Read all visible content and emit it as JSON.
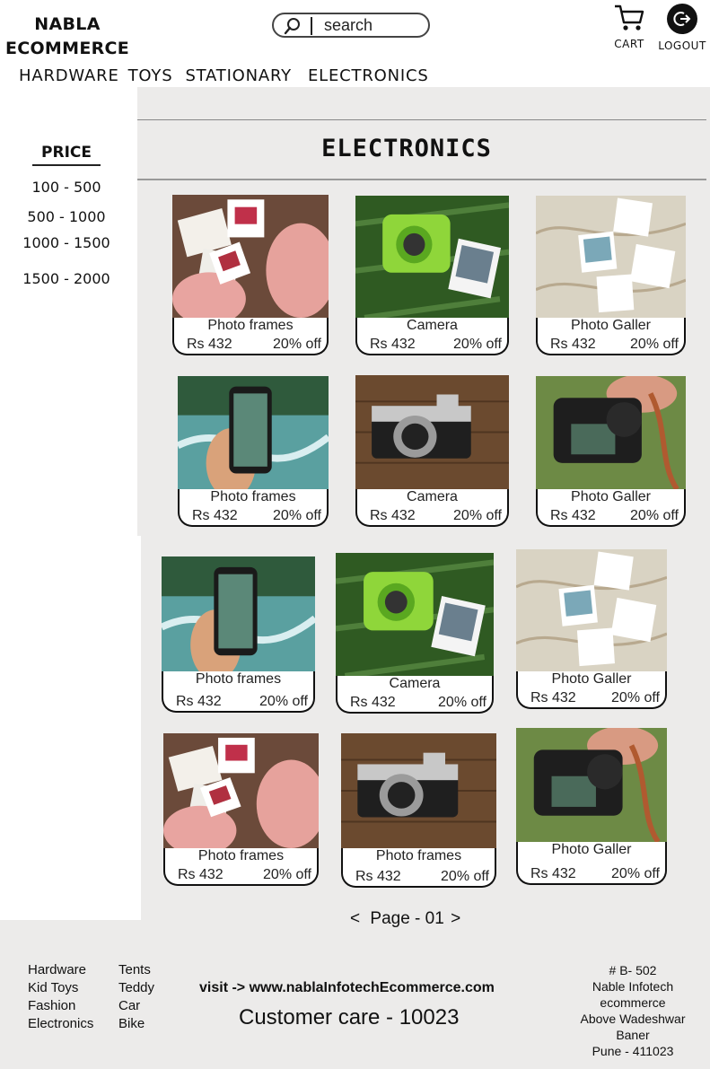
{
  "brand": {
    "line1": "NABLA",
    "line2": "ECOMMERCE"
  },
  "search": {
    "placeholder": "search"
  },
  "header": {
    "cart_label": "CART",
    "logout_label": "LOGOUT"
  },
  "nav": [
    "HARDWARE",
    "TOYS",
    "STATIONARY",
    "ELECTRONICS"
  ],
  "page_title": "ELECTRONICS",
  "filter": {
    "title": "PRICE",
    "options": [
      "100 - 500",
      "500 - 1000",
      "1000 - 1500",
      "1500 - 2000"
    ]
  },
  "products": [
    {
      "name": "Photo frames",
      "price": "Rs 432",
      "discount": "20% off",
      "image": "hands-holding-slides"
    },
    {
      "name": "Camera",
      "price": "Rs 432",
      "discount": "20% off",
      "image": "green-instant-camera"
    },
    {
      "name": "Photo Galler",
      "price": "Rs 432",
      "discount": "20% off",
      "image": "photos-on-map"
    },
    {
      "name": "Photo frames",
      "price": "Rs 432",
      "discount": "20% off",
      "image": "phone-photo-river"
    },
    {
      "name": "Camera",
      "price": "Rs 432",
      "discount": "20% off",
      "image": "retro-camera-on-wood"
    },
    {
      "name": "Photo Galler",
      "price": "Rs 432",
      "discount": "20% off",
      "image": "hand-holding-dslr"
    },
    {
      "name": "Photo frames",
      "price": "Rs 432",
      "discount": "20% off",
      "image": "phone-photo-river"
    },
    {
      "name": "Camera",
      "price": "Rs 432",
      "discount": "20% off",
      "image": "green-instant-camera"
    },
    {
      "name": "Photo Galler",
      "price": "Rs 432",
      "discount": "20% off",
      "image": "photos-on-map"
    },
    {
      "name": "Photo frames",
      "price": "Rs 432",
      "discount": "20% off",
      "image": "hands-holding-slides"
    },
    {
      "name": "Photo frames",
      "price": "Rs 432",
      "discount": "20% off",
      "image": "retro-camera-on-wood"
    },
    {
      "name": "Photo Galler",
      "price": "Rs 432",
      "discount": "20% off",
      "image": "hand-holding-dslr"
    }
  ],
  "pagination": {
    "prev": "<",
    "label": "Page - 01",
    "next": ">"
  },
  "footer": {
    "col1": [
      "Hardware",
      "Kid Toys",
      "Fashion",
      "Electronics"
    ],
    "col2": [
      "Tents",
      "Teddy",
      "Car",
      "Bike"
    ],
    "visit": "visit -> www.nablaInfotechEcommerce.com",
    "customer_care": "Customer care - 10023",
    "address": [
      "# B- 502",
      "Nable Infotech",
      "ecommerce",
      "Above Wadeshwar",
      "Baner",
      "Pune - 411023"
    ]
  },
  "colors": {
    "page_grey": "#ecebea",
    "text": "#111111",
    "card_border": "#111111"
  }
}
